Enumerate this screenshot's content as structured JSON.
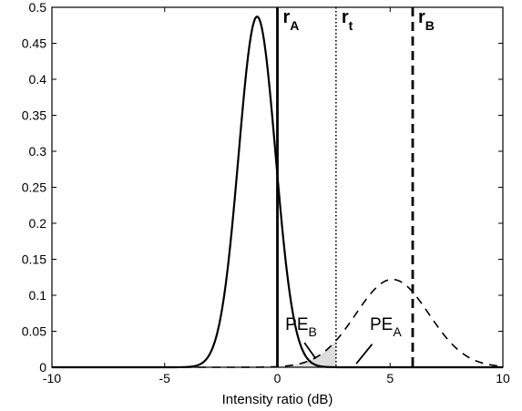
{
  "chart_data": {
    "type": "line",
    "xlabel": "Intensity ratio (dB)",
    "ylabel": "",
    "xlim": [
      -10,
      10
    ],
    "ylim": [
      0,
      0.5
    ],
    "x_ticks": [
      -10,
      -5,
      0,
      5,
      10
    ],
    "y_ticks": [
      0,
      0.05,
      0.1,
      0.15,
      0.2,
      0.25,
      0.3,
      0.35,
      0.4,
      0.45,
      0.5
    ],
    "x_tick_labels": [
      "-10",
      "-5",
      "0",
      "5",
      "10"
    ],
    "y_tick_labels": [
      "0",
      "0.05",
      "0.1",
      "0.15",
      "0.2",
      "0.25",
      "0.3",
      "0.35",
      "0.4",
      "0.45",
      "0.5"
    ],
    "grid": false,
    "series": [
      {
        "mean": -0.9,
        "sd": 0.82,
        "peak": 0.487,
        "style": "solid",
        "color": "#000000"
      },
      {
        "mean": 5.1,
        "sd": 1.62,
        "peak": 0.122,
        "style": "dashed",
        "color": "#000000"
      }
    ],
    "vlines": [
      {
        "x": 0,
        "style": "solid",
        "label_main": "r",
        "label_sub": "A"
      },
      {
        "x": 2.6,
        "style": "dotted",
        "label_main": "r",
        "label_sub": "t"
      },
      {
        "x": 6.0,
        "style": "dashed",
        "label_main": "r",
        "label_sub": "B"
      }
    ],
    "shaded_regions": [
      {
        "name": "PE_B",
        "from": -10,
        "to": 2.6,
        "under_series": 1,
        "color": "#dddddd"
      },
      {
        "name": "PE_A",
        "from": 2.6,
        "to": 10,
        "under_series": 0,
        "color": "#888888"
      }
    ],
    "annotations": [
      {
        "main": "PE",
        "sub": "B",
        "x": 0.35,
        "y": 0.052,
        "pointer_from": [
          1.2,
          0.034
        ],
        "pointer_to": [
          1.7,
          0.012
        ]
      },
      {
        "main": "PE",
        "sub": "A",
        "x": 4.1,
        "y": 0.052,
        "pointer_from": [
          4.2,
          0.032
        ],
        "pointer_to": [
          3.5,
          0.005
        ]
      }
    ]
  }
}
